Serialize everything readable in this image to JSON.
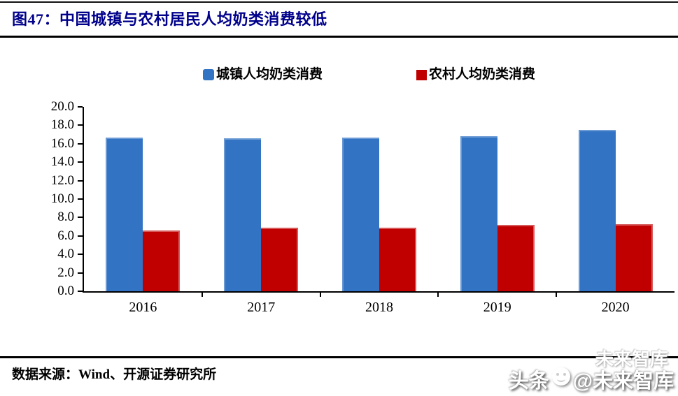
{
  "header": {
    "title": "图47：中国城镇与农村居民人均奶类消费较低"
  },
  "legend": {
    "items": [
      {
        "label": "城镇人均奶类消费",
        "color": "#3273C4"
      },
      {
        "label": "农村人均奶类消费",
        "color": "#C00000"
      }
    ]
  },
  "chart_data": {
    "type": "bar",
    "title": "图47：中国城镇与农村居民人均奶类消费较低",
    "categories": [
      "2016",
      "2017",
      "2018",
      "2019",
      "2020"
    ],
    "series": [
      {
        "name": "城镇人均奶类消费",
        "color": "#3273C4",
        "values": [
          16.7,
          16.6,
          16.7,
          16.8,
          17.5
        ]
      },
      {
        "name": "农村人均奶类消费",
        "color": "#C00000",
        "values": [
          6.6,
          6.9,
          6.9,
          7.2,
          7.3
        ]
      }
    ],
    "xlabel": "",
    "ylabel": "",
    "ylim": [
      0,
      20
    ],
    "ytick_step": 2,
    "ytick_labels": [
      "20.0",
      "18.0",
      "16.0",
      "14.0",
      "12.0",
      "10.0",
      "8.0",
      "6.0",
      "4.0",
      "2.0",
      "0.0"
    ],
    "grid": false,
    "legend_position": "top"
  },
  "footer": {
    "source_note": "数据来源：Wind、开源证券研究所"
  },
  "watermark": {
    "prefix": "头条",
    "suffix": "@未来智库",
    "ghost_text": "未来智库",
    "icon": "smiley-face-icon"
  },
  "colors": {
    "title": "#00008B",
    "urban_bar": "#3273C4",
    "rural_bar": "#C00000",
    "axis": "#000000",
    "background": "#FFFFFF"
  }
}
